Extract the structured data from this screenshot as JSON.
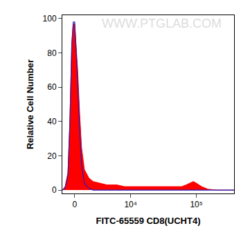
{
  "chart_data": {
    "type": "area",
    "x_label": "FITC-65559 CD8(UCHT4)",
    "y_label": "Relative Cell Number",
    "annotations": [
      "WWW.PTGLAB.COM"
    ],
    "x": [
      -1300,
      -1000,
      -700,
      -500,
      -300,
      -150,
      0,
      150,
      300,
      500,
      700,
      1000,
      1500,
      2000,
      3000,
      4000,
      6000,
      8000,
      10000,
      15000,
      20000,
      30000,
      40000,
      50000,
      60000,
      70000,
      80000,
      90000,
      100000,
      120000,
      150000,
      200000,
      370000
    ],
    "series": [
      {
        "color": "#ff0000",
        "type": "area",
        "values": [
          0,
          2,
          10,
          40,
          85,
          97,
          97,
          85,
          70,
          45,
          25,
          12,
          7,
          5,
          4,
          3,
          3,
          2,
          2,
          2,
          2,
          2,
          2,
          2,
          2,
          3,
          4,
          5,
          4,
          2,
          0.5,
          0,
          0
        ]
      },
      {
        "color": "#1f1fbf",
        "type": "line",
        "values": [
          0,
          1,
          8,
          38,
          85,
          98,
          98,
          82,
          62,
          35,
          15,
          4,
          1,
          0,
          0,
          0,
          0,
          0,
          0,
          0,
          0,
          0,
          0,
          0,
          0,
          0,
          0,
          0,
          0,
          0,
          0,
          0,
          0
        ]
      }
    ],
    "xlim": [
      -1300,
      370000
    ],
    "xticks": [
      0,
      {
        "value": 10000,
        "label": "10⁴"
      },
      {
        "value": 100000,
        "label": "10⁵"
      }
    ],
    "ylim": [
      -2,
      102
    ],
    "yticks": [
      0,
      20,
      40,
      60,
      80,
      100
    ],
    "grid": false
  }
}
